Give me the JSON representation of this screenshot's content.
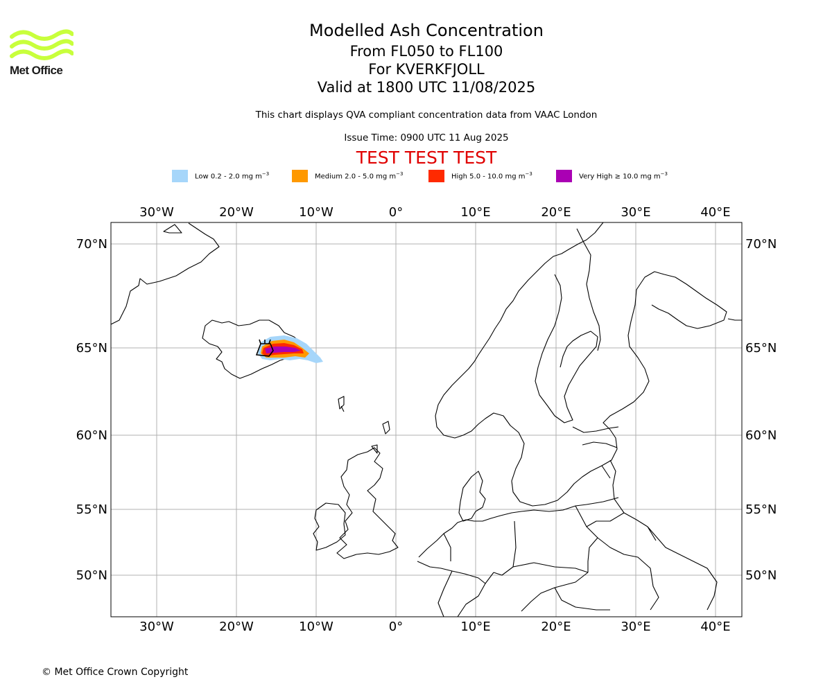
{
  "logo": {
    "text": "Met Office",
    "icon": "met-office-wave-logo",
    "color": "#c8ff3c"
  },
  "title": {
    "line1": "Modelled Ash Concentration",
    "line2": "From FL050 to FL100",
    "line3": "For KVERKFJOLL",
    "line4": "Valid at 1800 UTC 11/08/2025"
  },
  "subtitle": "This chart displays QVA compliant concentration data from VAAC London",
  "issue_time": "Issue Time: 0900 UTC 11 Aug 2025",
  "test_banner": "TEST TEST TEST",
  "legend": [
    {
      "label": "Low 0.2 - 2.0 mg m",
      "color": "#a6d6fa"
    },
    {
      "label": "Medium 2.0 - 5.0 mg m",
      "color": "#ff9900"
    },
    {
      "label": "High 5.0 - 10.0 mg m",
      "color": "#ff2a00"
    },
    {
      "label": "Very High  ≥  10.0 mg m",
      "color": "#aa00b4"
    }
  ],
  "legend_unit_exponent": "−3",
  "axes": {
    "lon_labels": [
      "30°W",
      "20°W",
      "10°W",
      "0°",
      "10°E",
      "20°E",
      "30°E",
      "40°E"
    ],
    "lat_labels": [
      "70°N",
      "65°N",
      "60°N",
      "55°N",
      "50°N"
    ]
  },
  "copyright": "© Met Office Crown Copyright"
}
